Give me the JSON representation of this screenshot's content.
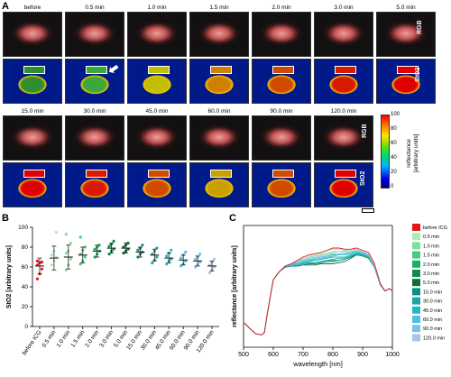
{
  "panels": {
    "a": "A",
    "b": "B",
    "c": "C"
  },
  "row_labels": {
    "rgb": "RGB",
    "sto2": "StO2"
  },
  "times_top": [
    "before",
    "0.5 min",
    "1.0 min",
    "1.5 min",
    "2.0 min",
    "3.0 min",
    "5.0 min"
  ],
  "times_bottom": [
    "15.0 min",
    "30.0 min",
    "45.0 min",
    "60.0 min",
    "90.0 min",
    "120.0 min"
  ],
  "colorbar": {
    "max": "100",
    "ticks": [
      "100",
      "80",
      "60",
      "40",
      "20",
      "0"
    ],
    "label_line1": "reflectance",
    "label_line2": "[arbitrary units]"
  },
  "colors": {
    "low": "#00008b",
    "mid": "#00c800",
    "high": "#ff0000",
    "before_icg": "#e11919"
  },
  "chart_data": [
    {
      "type": "scatter",
      "ylabel": "StO2 [arbitrary units]",
      "ylim": [
        0,
        100
      ],
      "yticks": [
        "0",
        "20",
        "40",
        "60",
        "80",
        "100"
      ],
      "categories": [
        "before ICG",
        "0.5 min",
        "1.0 min",
        "1.5 min",
        "2.0 min",
        "3.0 min",
        "5.0 min",
        "15.0 min",
        "30.0 min",
        "45.0 min",
        "60.0 min",
        "90.0 min",
        "120.0 min"
      ],
      "means": [
        61,
        69,
        70,
        72,
        76,
        79,
        79,
        75,
        72,
        69,
        67,
        66,
        61
      ],
      "sd": [
        8,
        12,
        12,
        8,
        6,
        5,
        5,
        5,
        6,
        5,
        5,
        5,
        5
      ],
      "points": [
        [
          48,
          53,
          58,
          62,
          64,
          65,
          66
        ],
        [
          62,
          66,
          70,
          72,
          76,
          95
        ],
        [
          57,
          62,
          68,
          74,
          76,
          84,
          93
        ],
        [
          63,
          66,
          70,
          73,
          77,
          80,
          90
        ],
        [
          70,
          73,
          76,
          78,
          80,
          82
        ],
        [
          73,
          76,
          78,
          81,
          83,
          86
        ],
        [
          74,
          76,
          78,
          80,
          82,
          84
        ],
        [
          70,
          73,
          75,
          77,
          79,
          82
        ],
        [
          64,
          67,
          70,
          73,
          76,
          79
        ],
        [
          63,
          66,
          68,
          71,
          74,
          77
        ],
        [
          61,
          63,
          66,
          69,
          72,
          75
        ],
        [
          60,
          62,
          65,
          68,
          70,
          73
        ],
        [
          54,
          57,
          60,
          62,
          65,
          68
        ]
      ],
      "colors": [
        "#e11919",
        "#a8ebb4",
        "#7ee09a",
        "#45cc7a",
        "#17b060",
        "#0f8f4e",
        "#0a6e3a",
        "#0a8e80",
        "#1aa7a7",
        "#27b5c6",
        "#4cc0e0",
        "#79c2ea",
        "#aac4e8"
      ]
    },
    {
      "type": "line",
      "xlabel": "wavelength [nm]",
      "ylabel": "reflectance [arbitrary units]",
      "xlim": [
        500,
        1000
      ],
      "xticks": [
        "500",
        "600",
        "700",
        "800",
        "900",
        "1000"
      ],
      "x": [
        500,
        520,
        540,
        560,
        570,
        580,
        600,
        620,
        640,
        660,
        680,
        700,
        720,
        740,
        760,
        780,
        800,
        820,
        840,
        860,
        880,
        900,
        920,
        940,
        960,
        975,
        990,
        1000
      ],
      "series": [
        {
          "name": "before ICG",
          "values": [
            0.22,
            0.17,
            0.12,
            0.11,
            0.13,
            0.3,
            0.6,
            0.67,
            0.72,
            0.74,
            0.77,
            0.8,
            0.82,
            0.83,
            0.84,
            0.86,
            0.88,
            0.88,
            0.87,
            0.87,
            0.88,
            0.86,
            0.84,
            0.74,
            0.56,
            0.5,
            0.52,
            0.5
          ]
        },
        {
          "name": "0.5 min",
          "values": [
            0.22,
            0.17,
            0.12,
            0.11,
            0.13,
            0.3,
            0.6,
            0.67,
            0.72,
            0.74,
            0.76,
            0.79,
            0.81,
            0.82,
            0.83,
            0.85,
            0.87,
            0.87,
            0.86,
            0.86,
            0.87,
            0.85,
            0.83,
            0.73,
            0.56,
            0.5,
            0.52,
            0.5
          ]
        },
        {
          "name": "1.0 min",
          "values": [
            0.22,
            0.17,
            0.12,
            0.11,
            0.13,
            0.3,
            0.6,
            0.67,
            0.72,
            0.74,
            0.75,
            0.78,
            0.8,
            0.81,
            0.82,
            0.83,
            0.85,
            0.85,
            0.84,
            0.85,
            0.86,
            0.85,
            0.82,
            0.73,
            0.56,
            0.5,
            0.52,
            0.5
          ]
        },
        {
          "name": "1.5 min",
          "values": [
            0.22,
            0.17,
            0.12,
            0.11,
            0.13,
            0.3,
            0.6,
            0.67,
            0.72,
            0.74,
            0.75,
            0.77,
            0.78,
            0.79,
            0.8,
            0.81,
            0.82,
            0.82,
            0.82,
            0.84,
            0.85,
            0.84,
            0.82,
            0.72,
            0.55,
            0.5,
            0.52,
            0.5
          ]
        },
        {
          "name": "2.0 min",
          "values": [
            0.22,
            0.17,
            0.12,
            0.11,
            0.13,
            0.3,
            0.6,
            0.67,
            0.72,
            0.74,
            0.74,
            0.76,
            0.77,
            0.77,
            0.78,
            0.79,
            0.8,
            0.8,
            0.8,
            0.82,
            0.84,
            0.83,
            0.81,
            0.72,
            0.55,
            0.5,
            0.52,
            0.5
          ]
        },
        {
          "name": "3.0 min",
          "values": [
            0.22,
            0.17,
            0.12,
            0.11,
            0.13,
            0.3,
            0.6,
            0.67,
            0.72,
            0.73,
            0.73,
            0.75,
            0.75,
            0.75,
            0.76,
            0.77,
            0.77,
            0.77,
            0.78,
            0.8,
            0.83,
            0.82,
            0.8,
            0.71,
            0.55,
            0.5,
            0.52,
            0.5
          ]
        },
        {
          "name": "5.0 min",
          "values": [
            0.22,
            0.17,
            0.12,
            0.11,
            0.13,
            0.3,
            0.6,
            0.67,
            0.71,
            0.72,
            0.72,
            0.73,
            0.73,
            0.73,
            0.74,
            0.74,
            0.74,
            0.75,
            0.76,
            0.79,
            0.82,
            0.81,
            0.79,
            0.71,
            0.55,
            0.5,
            0.52,
            0.5
          ]
        },
        {
          "name": "15.0 min",
          "values": [
            0.22,
            0.17,
            0.12,
            0.11,
            0.13,
            0.3,
            0.6,
            0.67,
            0.71,
            0.72,
            0.72,
            0.73,
            0.74,
            0.74,
            0.75,
            0.76,
            0.76,
            0.77,
            0.78,
            0.8,
            0.82,
            0.81,
            0.79,
            0.71,
            0.55,
            0.5,
            0.52,
            0.5
          ]
        },
        {
          "name": "30.0 min",
          "values": [
            0.22,
            0.17,
            0.12,
            0.11,
            0.13,
            0.3,
            0.6,
            0.67,
            0.71,
            0.72,
            0.73,
            0.74,
            0.75,
            0.75,
            0.76,
            0.77,
            0.78,
            0.79,
            0.79,
            0.81,
            0.83,
            0.82,
            0.8,
            0.71,
            0.55,
            0.5,
            0.52,
            0.5
          ]
        },
        {
          "name": "45.0 min",
          "values": [
            0.22,
            0.17,
            0.12,
            0.11,
            0.13,
            0.3,
            0.6,
            0.67,
            0.72,
            0.73,
            0.73,
            0.75,
            0.76,
            0.77,
            0.78,
            0.79,
            0.8,
            0.8,
            0.8,
            0.82,
            0.84,
            0.83,
            0.81,
            0.72,
            0.55,
            0.5,
            0.52,
            0.5
          ]
        },
        {
          "name": "60.0 min",
          "values": [
            0.22,
            0.17,
            0.12,
            0.11,
            0.13,
            0.3,
            0.6,
            0.67,
            0.72,
            0.73,
            0.74,
            0.76,
            0.77,
            0.78,
            0.79,
            0.8,
            0.81,
            0.82,
            0.82,
            0.83,
            0.85,
            0.84,
            0.81,
            0.72,
            0.55,
            0.5,
            0.52,
            0.5
          ]
        },
        {
          "name": "90.0 min",
          "values": [
            0.22,
            0.17,
            0.12,
            0.11,
            0.13,
            0.3,
            0.6,
            0.67,
            0.72,
            0.74,
            0.75,
            0.77,
            0.78,
            0.79,
            0.8,
            0.81,
            0.83,
            0.83,
            0.83,
            0.84,
            0.86,
            0.84,
            0.82,
            0.72,
            0.56,
            0.5,
            0.52,
            0.5
          ]
        },
        {
          "name": "120.0 min",
          "values": [
            0.22,
            0.17,
            0.12,
            0.11,
            0.13,
            0.3,
            0.6,
            0.67,
            0.72,
            0.74,
            0.76,
            0.78,
            0.79,
            0.8,
            0.81,
            0.82,
            0.84,
            0.85,
            0.85,
            0.85,
            0.86,
            0.85,
            0.82,
            0.73,
            0.56,
            0.5,
            0.52,
            0.5
          ]
        }
      ],
      "legend_colors": [
        "#e11919",
        "#a8ebb4",
        "#7ee09a",
        "#45cc7a",
        "#17b060",
        "#0f8f4e",
        "#0a6e3a",
        "#0a8e80",
        "#1aa7a7",
        "#27b5c6",
        "#4cc0e0",
        "#79c2ea",
        "#aac4e8"
      ]
    }
  ]
}
